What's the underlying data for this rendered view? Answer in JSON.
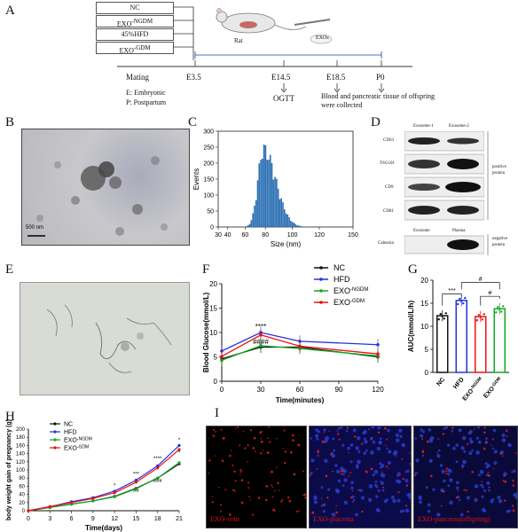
{
  "panels": {
    "a": "A",
    "b": "B",
    "c": "C",
    "d": "D",
    "e": "E",
    "f": "F",
    "g": "G",
    "h": "H",
    "i": "I"
  },
  "timeline": {
    "groups": [
      "NC",
      "EXO-NGDM",
      "45%HFD",
      "EXO-GDM"
    ],
    "group_main": [
      "NC",
      "EXO",
      "45%HFD",
      "EXO"
    ],
    "group_sup": [
      "",
      "-NGDM",
      "",
      "-GDM"
    ],
    "rat_label": "Rat",
    "exos_label": "EXOs",
    "events": [
      "Mating",
      "E3.5",
      "E14.5",
      "E18.5",
      "P0"
    ],
    "ogtt": "OGTT",
    "blood_note": "Blood and pancreatic tissue of offspring were collected",
    "legend_e": "E: Embryonic",
    "legend_p": "P: Postpartum"
  },
  "size_chart": {
    "ylabel": "Events",
    "xlabel": "Size (nm)",
    "yticks": [
      "0",
      "50",
      "100",
      "150",
      "200",
      "250",
      "300"
    ],
    "xticks": [
      "30",
      "40",
      "60",
      "80",
      "100",
      "120",
      "150"
    ],
    "peak": 265
  },
  "blot": {
    "col1": "Exosome-1",
    "col2": "Exosome-2",
    "rows": [
      "CD63",
      "TSG101",
      "CD9",
      "CD81"
    ],
    "pos_label": "positive protein",
    "neg_col1": "Exosome",
    "neg_col2": "Plasma",
    "neg_row": "Calnexin",
    "neg_label": "negative protein"
  },
  "micro_labels": {
    "b_scale": "500 nm",
    "i1": "EXO-vein",
    "i2": "EXO-placenta",
    "i3": "EXO-pancreas(offspring)"
  },
  "chart_data": [
    {
      "type": "line",
      "title": "",
      "xlabel": "Time(minutes)",
      "ylabel": "Blood Glucose(mmol/L)",
      "x": [
        0,
        30,
        60,
        120
      ],
      "xticks": [
        0,
        30,
        60,
        90,
        120
      ],
      "yticks": [
        0,
        5,
        10,
        15,
        20
      ],
      "ylim": [
        0,
        20
      ],
      "series": [
        {
          "name": "NC",
          "color": "#111111",
          "values": [
            4.6,
            7.0,
            7.0,
            5.0
          ]
        },
        {
          "name": "HFD",
          "color": "#2233dd",
          "values": [
            6.2,
            10.0,
            8.2,
            7.5
          ]
        },
        {
          "name": "EXO-NGDM",
          "color": "#11aa22",
          "values": [
            4.3,
            7.3,
            6.7,
            5.2
          ]
        },
        {
          "name": "EXO-GDM",
          "color": "#ee1111",
          "values": [
            5.1,
            9.5,
            7.2,
            5.6
          ]
        }
      ],
      "legend": [
        "NC",
        "HFD",
        "EXO-NGDM",
        "EXO-GDM"
      ],
      "legend_main": [
        "NC",
        "HFD",
        "EXO",
        "EXO"
      ],
      "legend_sup": [
        "",
        "",
        "-NGDM",
        "-GDM"
      ],
      "annotations": [
        "****",
        "####"
      ]
    },
    {
      "type": "bar",
      "title": "",
      "xlabel": "",
      "ylabel": "AUC(mmol/L/h)",
      "categories": [
        "NC",
        "HFD",
        "EXO-NGDM",
        "EXO-GDM"
      ],
      "cat_main": [
        "NC",
        "HFD",
        "EXO",
        "EXO"
      ],
      "cat_sup": [
        "",
        "",
        "-NGDM",
        "-GDM"
      ],
      "values": [
        12.3,
        15.6,
        12.1,
        13.8
      ],
      "colors": [
        "#111111",
        "#2233dd",
        "#ee1111",
        "#11aa22"
      ],
      "yticks": [
        0,
        5,
        10,
        15,
        20
      ],
      "ylim": [
        0,
        20
      ],
      "annotations": [
        "***",
        "#",
        "#"
      ]
    },
    {
      "type": "line",
      "title": "",
      "xlabel": "Time(days)",
      "ylabel": "body weight gain of pregnancy (g)",
      "x": [
        0,
        3,
        6,
        9,
        12,
        15,
        18,
        21
      ],
      "xticks": [
        0,
        3,
        6,
        9,
        12,
        15,
        18,
        21
      ],
      "yticks": [
        0,
        20,
        40,
        60,
        80,
        100,
        120,
        140,
        160,
        180,
        200
      ],
      "ylim": [
        0,
        200
      ],
      "series": [
        {
          "name": "NC",
          "color": "#111111",
          "values": [
            0,
            8,
            16,
            24,
            35,
            55,
            80,
            115
          ]
        },
        {
          "name": "HFD",
          "color": "#2233dd",
          "values": [
            0,
            10,
            22,
            32,
            48,
            75,
            110,
            160
          ]
        },
        {
          "name": "EXO-NGDM",
          "color": "#11aa22",
          "values": [
            0,
            8,
            16,
            24,
            34,
            54,
            80,
            118
          ]
        },
        {
          "name": "EXO-GDM",
          "color": "#ee1111",
          "values": [
            0,
            10,
            20,
            30,
            44,
            70,
            105,
            150
          ]
        }
      ],
      "legend": [
        "NC",
        "HFD",
        "EXO-NGDM",
        "EXO-GDM"
      ],
      "legend_main": [
        "NC",
        "HFD",
        "EXO",
        "EXO"
      ],
      "legend_sup": [
        "",
        "",
        "-NGDM",
        "-GDM"
      ],
      "annotations": [
        "*",
        "***",
        "****",
        "*",
        "##",
        "###",
        "*"
      ]
    }
  ]
}
